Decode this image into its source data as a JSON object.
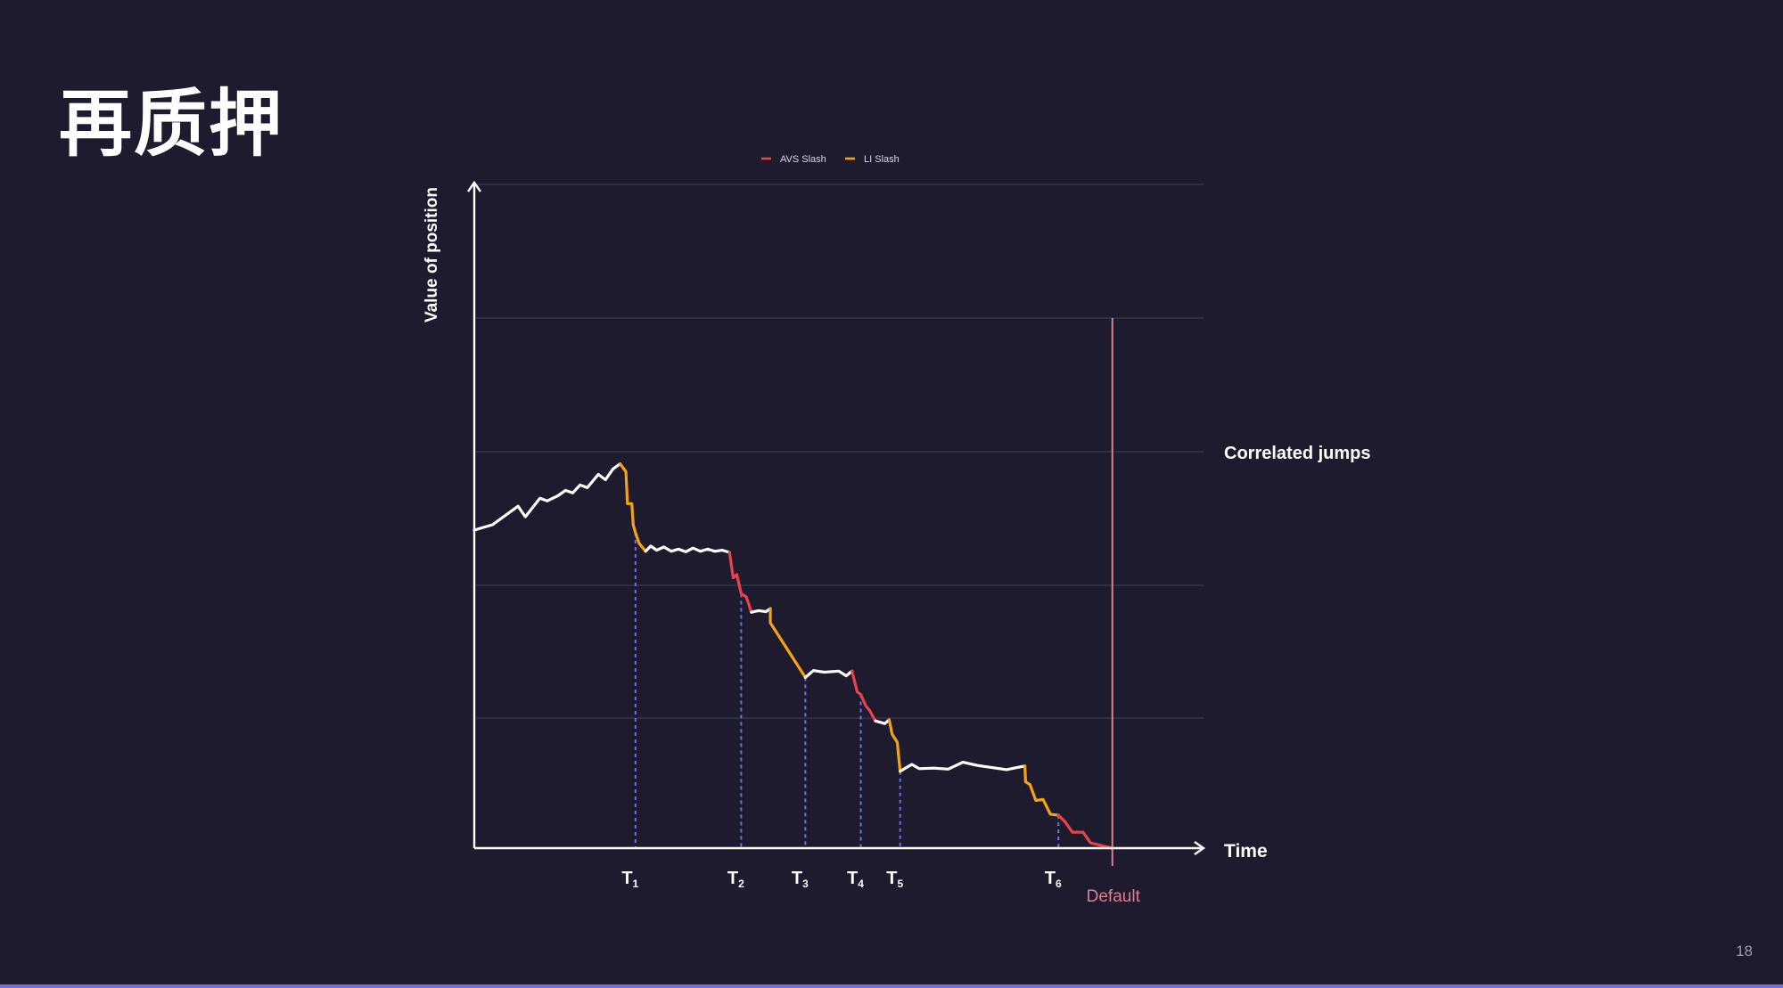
{
  "slide": {
    "title": "再质押",
    "page_number": "18"
  },
  "colors": {
    "background": "#1e1b2e",
    "position_line": "#ffffff",
    "avs_slash": "#e8434a",
    "li_slash": "#f5a219",
    "default_line": "#e07d8f",
    "event_marker": "#6a72e8",
    "grid": "#3a3850",
    "axis": "#ffffff"
  },
  "chart_data": {
    "type": "line",
    "title": "",
    "xlabel": "Time",
    "ylabel": "Value of position",
    "xlim": [
      0,
      100
    ],
    "ylim": [
      0,
      100
    ],
    "grid": true,
    "legend_position": "top-center",
    "legend": [
      {
        "label": "AVS Slash",
        "color": "#e8434a"
      },
      {
        "label": "LI Slash",
        "color": "#f5a219"
      }
    ],
    "annotations": {
      "correlated_jumps": "Correlated jumps",
      "default_label": "Default",
      "default_x": 87.5
    },
    "events": [
      {
        "label": "T",
        "sub": "1",
        "x": 22.1
      },
      {
        "label": "T",
        "sub": "2",
        "x": 36.6
      },
      {
        "label": "T",
        "sub": "3",
        "x": 45.4
      },
      {
        "label": "T",
        "sub": "4",
        "x": 53.0
      },
      {
        "label": "T",
        "sub": "5",
        "x": 58.4
      },
      {
        "label": "T",
        "sub": "6",
        "x": 80.1
      }
    ],
    "series": [
      {
        "kind": "normal",
        "points": [
          [
            0,
            60
          ],
          [
            2.5,
            61
          ],
          [
            6,
            64.5
          ],
          [
            7,
            62.5
          ],
          [
            9,
            66
          ],
          [
            10,
            65.5
          ],
          [
            11.5,
            66.5
          ],
          [
            12.5,
            67.5
          ],
          [
            13.5,
            67
          ],
          [
            14.5,
            68.5
          ],
          [
            15.5,
            68
          ],
          [
            17,
            70.5
          ],
          [
            18,
            69.5
          ],
          [
            19,
            71.5
          ],
          [
            20,
            72.5
          ]
        ]
      },
      {
        "kind": "li",
        "points": [
          [
            20,
            72.5
          ],
          [
            20.8,
            71
          ],
          [
            21,
            65
          ],
          [
            21.6,
            65
          ],
          [
            21.8,
            61
          ],
          [
            22.1,
            59.5
          ],
          [
            22.6,
            57.5
          ],
          [
            23.5,
            56
          ]
        ]
      },
      {
        "kind": "normal",
        "points": [
          [
            23.5,
            56
          ],
          [
            24.2,
            57
          ],
          [
            25,
            56.2
          ],
          [
            26,
            56.8
          ],
          [
            27,
            56
          ],
          [
            28,
            56.4
          ],
          [
            29,
            55.9
          ],
          [
            30,
            56.6
          ],
          [
            31,
            56
          ],
          [
            32,
            56.4
          ],
          [
            33,
            56
          ],
          [
            34,
            56.2
          ],
          [
            35,
            55.8
          ]
        ]
      },
      {
        "kind": "avs",
        "points": [
          [
            35,
            55.8
          ],
          [
            35.5,
            51
          ],
          [
            36,
            51.6
          ],
          [
            36.6,
            48
          ],
          [
            37.3,
            47.4
          ],
          [
            38,
            44.5
          ]
        ]
      },
      {
        "kind": "normal",
        "points": [
          [
            38,
            44.5
          ],
          [
            39,
            44.8
          ],
          [
            40,
            44.6
          ],
          [
            40.6,
            45.2
          ]
        ]
      },
      {
        "kind": "li",
        "points": [
          [
            40.6,
            45.2
          ],
          [
            40.6,
            42.5
          ],
          [
            45.4,
            32.2
          ]
        ]
      },
      {
        "kind": "normal",
        "points": [
          [
            45.4,
            32.2
          ],
          [
            46.5,
            33.5
          ],
          [
            48,
            33.2
          ],
          [
            50,
            33.4
          ],
          [
            51,
            32.5
          ],
          [
            51.8,
            33.4
          ]
        ]
      },
      {
        "kind": "avs",
        "points": [
          [
            51.8,
            33.4
          ],
          [
            52.5,
            29.5
          ],
          [
            53,
            29
          ],
          [
            53.7,
            26.8
          ],
          [
            54.2,
            26
          ],
          [
            55,
            24
          ]
        ]
      },
      {
        "kind": "normal",
        "points": [
          [
            55,
            24
          ],
          [
            56.3,
            23.5
          ],
          [
            56.9,
            24.2
          ]
        ]
      },
      {
        "kind": "li",
        "points": [
          [
            56.9,
            24.2
          ],
          [
            57.3,
            21.5
          ],
          [
            58,
            20
          ],
          [
            58.4,
            14.5
          ]
        ]
      },
      {
        "kind": "normal",
        "points": [
          [
            58.4,
            14.5
          ],
          [
            60,
            15.8
          ],
          [
            61,
            15
          ],
          [
            63,
            15.1
          ],
          [
            65,
            14.9
          ],
          [
            67,
            16.2
          ],
          [
            69,
            15.6
          ],
          [
            71,
            15.2
          ],
          [
            73,
            14.8
          ],
          [
            75.5,
            15.5
          ]
        ]
      },
      {
        "kind": "li",
        "points": [
          [
            75.5,
            15.5
          ],
          [
            75.6,
            12.5
          ],
          [
            76.2,
            12
          ],
          [
            77,
            9
          ],
          [
            78,
            9.2
          ],
          [
            79,
            6.4
          ],
          [
            80.1,
            6.2
          ]
        ]
      },
      {
        "kind": "avs",
        "points": [
          [
            80.1,
            6.2
          ],
          [
            81,
            5
          ],
          [
            82,
            3
          ],
          [
            83.5,
            3
          ],
          [
            84.5,
            1
          ],
          [
            86.5,
            0.3
          ],
          [
            87.5,
            0
          ]
        ]
      }
    ]
  }
}
